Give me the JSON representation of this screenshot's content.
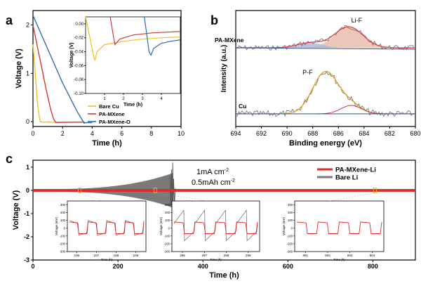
{
  "panels": {
    "a": {
      "letter": "a",
      "chart_data": {
        "type": "line",
        "xlabel": "Time (h)",
        "ylabel": "Voltage (V)",
        "xlim": [
          0,
          10
        ],
        "ylim": [
          -0.1,
          2.3
        ],
        "xticks": [
          "0",
          "2",
          "4",
          "6",
          "8",
          "10"
        ],
        "yticks": [
          "0",
          "1",
          "2"
        ],
        "series": [
          {
            "name": "Bare Cu",
            "color": "#f0c020",
            "x": [
              0,
              0.15,
              0.3,
              0.42,
              0.5,
              0.6,
              1.0,
              3.5
            ],
            "y": [
              1.6,
              1.0,
              0.4,
              0.1,
              0.0,
              -0.01,
              -0.01,
              -0.01
            ]
          },
          {
            "name": "PA-MXene",
            "color": "#d13b3b",
            "x": [
              0,
              0.3,
              0.6,
              0.9,
              1.2,
              1.4,
              1.55,
              1.7,
              3.5
            ],
            "y": [
              2.0,
              1.55,
              1.1,
              0.65,
              0.25,
              0.05,
              -0.02,
              -0.015,
              -0.01
            ]
          },
          {
            "name": "PA-MXene-O",
            "color": "#2f6cb0",
            "x": [
              0,
              0.5,
              1.0,
              1.5,
              2.0,
              2.5,
              3.0,
              3.3,
              3.45,
              3.6,
              4.0
            ],
            "y": [
              2.2,
              1.85,
              1.5,
              1.15,
              0.8,
              0.5,
              0.2,
              0.05,
              -0.03,
              -0.02,
              -0.02
            ]
          }
        ],
        "inset": {
          "xlabel": "Time (h)",
          "ylabel": "Voltage (V)",
          "xlim": [
            0,
            5
          ],
          "ylim": [
            -0.1,
            0.01
          ],
          "xticks": [
            "1",
            "2",
            "3",
            "4"
          ],
          "yticks": [
            "0.00",
            "-0.02",
            "-0.04",
            "-0.06",
            "-0.08",
            "-0.10"
          ],
          "series": [
            {
              "name": "Bare Cu",
              "color": "#f0c020",
              "x": [
                0.0,
                0.3,
                0.45,
                0.5,
                0.6,
                1.0,
                2.0,
                3.0,
                4.0,
                5.0
              ],
              "y": [
                0.01,
                -0.03,
                -0.05,
                -0.052,
                -0.04,
                -0.03,
                -0.025,
                -0.022,
                -0.02,
                -0.019
              ]
            },
            {
              "name": "PA-MXene",
              "color": "#d13b3b",
              "x": [
                1.3,
                1.45,
                1.55,
                1.6,
                1.8,
                2.5,
                3.5,
                5.0
              ],
              "y": [
                0.01,
                -0.015,
                -0.03,
                -0.028,
                -0.022,
                -0.016,
                -0.013,
                -0.011
              ]
            },
            {
              "name": "PA-MXene-O",
              "color": "#2f6cb0",
              "x": [
                3.1,
                3.25,
                3.35,
                3.45,
                3.6,
                4.0,
                4.5,
                5.0
              ],
              "y": [
                0.01,
                -0.02,
                -0.04,
                -0.045,
                -0.035,
                -0.028,
                -0.025,
                -0.023
              ]
            }
          ]
        }
      }
    },
    "b": {
      "letter": "b",
      "chart_data": {
        "type": "line",
        "xlabel": "Binding energy (eV)",
        "ylabel": "Intensity (a.u.)",
        "xlim": [
          694,
          680
        ],
        "xticks": [
          "694",
          "692",
          "690",
          "688",
          "686",
          "684",
          "682",
          "680"
        ],
        "traces": [
          {
            "label": "PA-MXene",
            "peak_label": "Li-F",
            "peak_center": 685.2
          },
          {
            "label": "Cu",
            "peak_label": "P-F",
            "peak_center": 687.0,
            "secondary_center": 685.0
          }
        ]
      }
    },
    "c": {
      "letter": "c",
      "chart_data": {
        "type": "line",
        "xlabel": "Time (h)",
        "ylabel": "Voltage (V)",
        "xlim": [
          0,
          900
        ],
        "ylim": [
          -3,
          1.3
        ],
        "xticks": [
          "0",
          "200",
          "400",
          "600",
          "800"
        ],
        "yticks": [
          "1",
          "0",
          "-1",
          "-2",
          "-3"
        ],
        "annotation_line1": "1mA cm",
        "annotation_line1_sup": "-2",
        "annotation_line2": "0.5mAh cm",
        "annotation_line2_sup": "-2",
        "series": [
          {
            "name": "PA-MXene-Li",
            "color": "#e02a2a",
            "x_end": 900,
            "amplitude": 0.06
          },
          {
            "name": "Bare Li",
            "color": "#7a7a7a",
            "x_end": 335,
            "amplitude_start": 0.05,
            "failure_at": 330
          }
        ],
        "insets": [
          {
            "xticks": [
              "106",
              "107",
              "108",
              "109"
            ],
            "xlabel": "Time (h)",
            "ylabel": "Voltage (mV)",
            "yticks": [
              "300",
              "200",
              "100",
              "0",
              "-100",
              "-200",
              "-300"
            ]
          },
          {
            "xticks": [
              "296",
              "297",
              "298",
              "299"
            ],
            "xlabel": "Time (h)",
            "ylabel": "Voltage (mV)",
            "yticks": [
              "300",
              "200",
              "100",
              "0",
              "-100",
              "-200",
              "-300"
            ]
          },
          {
            "xticks": [
              "801",
              "802",
              "803",
              "804"
            ],
            "xlabel": "Time (h)",
            "ylabel": "Voltage (mV)",
            "yticks": [
              "300",
              "200",
              "100",
              "0",
              "-100",
              "-200",
              "-300"
            ]
          }
        ]
      }
    }
  }
}
